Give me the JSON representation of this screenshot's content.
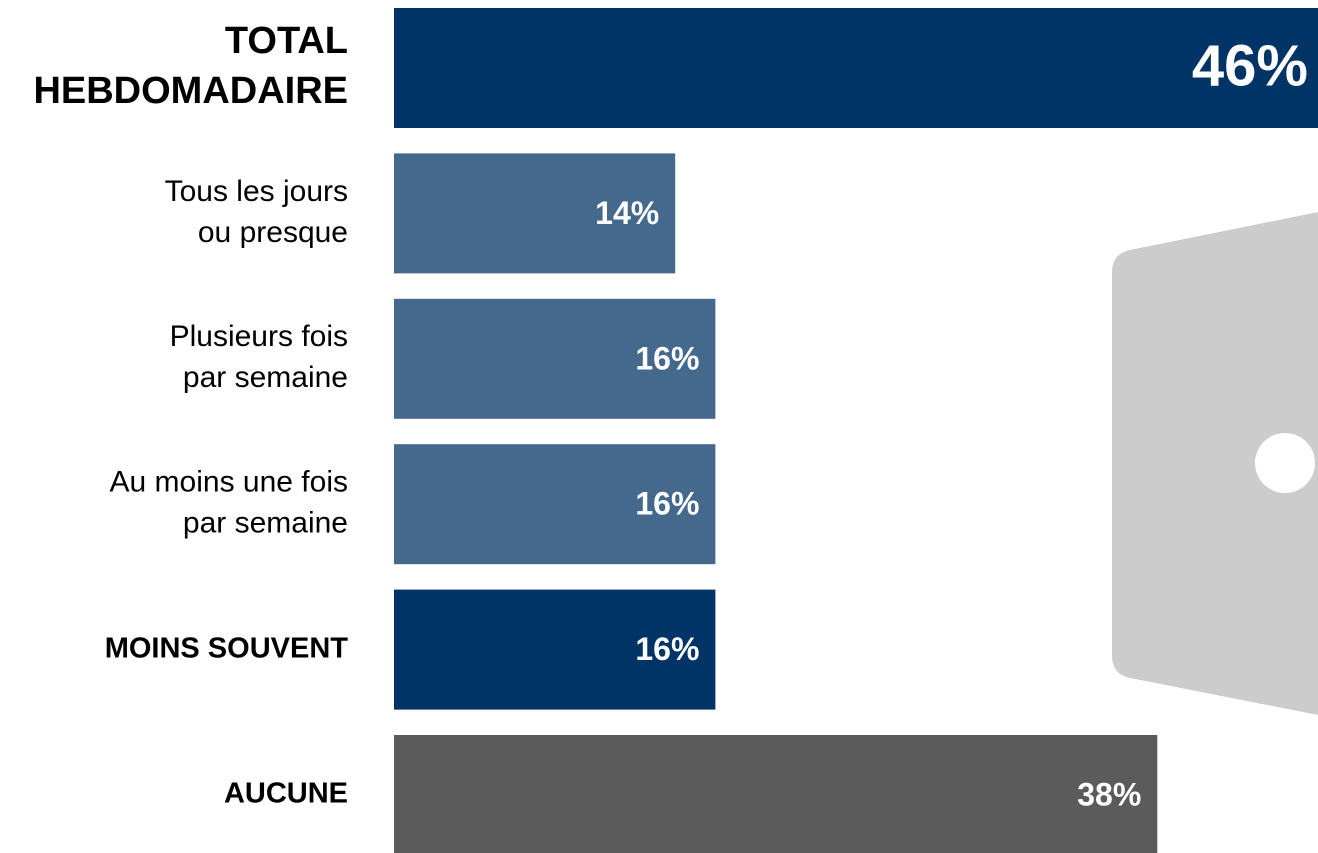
{
  "chart_data": {
    "type": "bar",
    "categories": [
      [
        "TOTAL",
        "HEBDOMADAIRE"
      ],
      [
        "Tous les jours",
        "ou presque"
      ],
      [
        "Plusieurs fois",
        "par semaine"
      ],
      [
        "Au moins une fois",
        "par semaine"
      ],
      [
        "MOINS SOUVENT"
      ],
      [
        "AUCUNE"
      ]
    ],
    "values": [
      46,
      14,
      16,
      16,
      16,
      38
    ],
    "value_labels": [
      "46%",
      "14%",
      "16%",
      "16%",
      "16%",
      "38%"
    ],
    "colors": [
      "#003466",
      "#45698d",
      "#45698d",
      "#45698d",
      "#003466",
      "#5b5b5b"
    ],
    "bold": [
      true,
      false,
      false,
      false,
      true,
      true
    ]
  }
}
